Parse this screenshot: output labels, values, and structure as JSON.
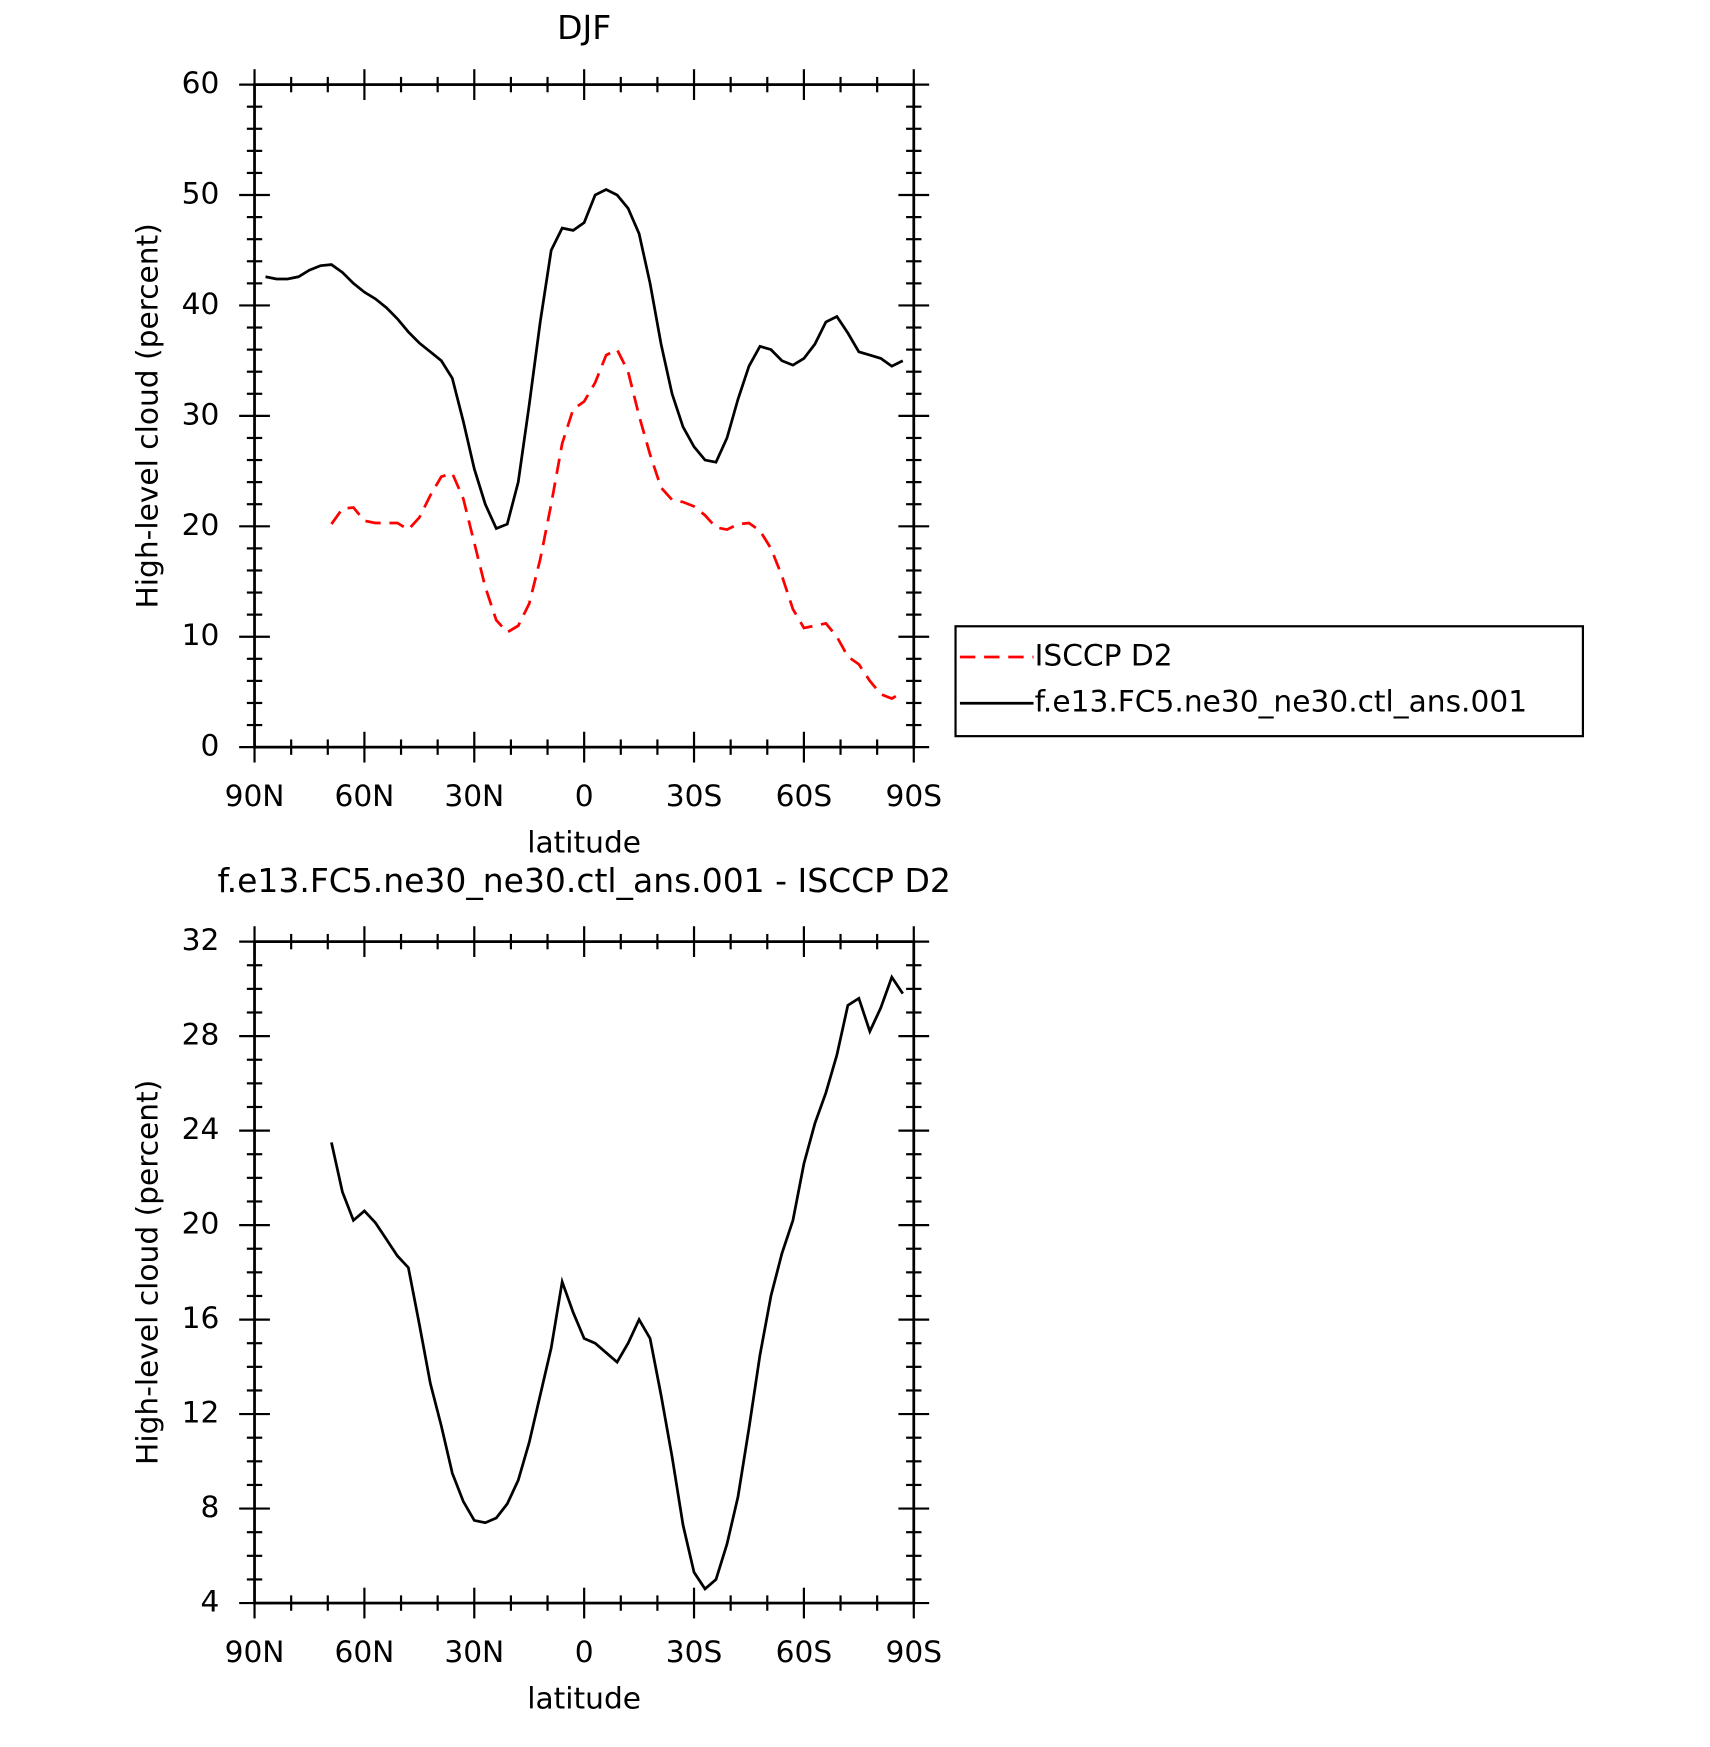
{
  "chart_data": [
    {
      "type": "line",
      "title": "DJF",
      "xlabel": "latitude",
      "ylabel": "High-level cloud (percent)",
      "x": [
        87,
        84,
        81,
        78,
        75,
        72,
        69,
        66,
        63,
        60,
        57,
        54,
        51,
        48,
        45,
        42,
        39,
        36,
        33,
        30,
        27,
        24,
        21,
        18,
        15,
        12,
        9,
        6,
        3,
        0,
        -3,
        -6,
        -9,
        -12,
        -15,
        -18,
        -21,
        -24,
        -27,
        -30,
        -33,
        -36,
        -39,
        -42,
        -45,
        -48,
        -51,
        -54,
        -57,
        -60,
        -63,
        -66,
        -69,
        -72,
        -75,
        -78,
        -81,
        -84,
        -87
      ],
      "series": [
        {
          "name": "ISCCP D2",
          "color": "#ff0000",
          "line_style": "dashed",
          "values": [
            null,
            null,
            null,
            null,
            null,
            null,
            20.2,
            21.6,
            21.7,
            20.5,
            20.3,
            20.3,
            20.3,
            19.7,
            20.8,
            22.8,
            24.5,
            24.8,
            22.5,
            18.5,
            14.5,
            11.5,
            10.4,
            11.0,
            13.0,
            17.0,
            22.0,
            27.5,
            30.6,
            31.3,
            33.0,
            35.5,
            36.0,
            34.0,
            30.0,
            26.5,
            23.5,
            22.4,
            22.2,
            21.8,
            21.0,
            19.9,
            19.7,
            20.2,
            20.3,
            19.6,
            18.0,
            15.5,
            12.5,
            10.8,
            11.0,
            11.2,
            10.0,
            8.2,
            7.5,
            6.0,
            4.8,
            4.4,
            5.0
          ]
        },
        {
          "name": "f.e13.FC5.ne30_ne30.ctl_ans.001",
          "color": "#000000",
          "line_style": "solid",
          "values": [
            42.6,
            42.4,
            42.4,
            42.6,
            43.2,
            43.6,
            43.7,
            43.0,
            42.0,
            41.2,
            40.6,
            39.8,
            38.8,
            37.6,
            36.6,
            35.8,
            35.0,
            33.4,
            29.5,
            25.2,
            22.0,
            19.8,
            20.2,
            24.0,
            31.0,
            38.5,
            45.0,
            47.0,
            46.8,
            47.5,
            50.0,
            50.5,
            50.0,
            48.8,
            46.5,
            42.0,
            36.5,
            32.0,
            29.0,
            27.2,
            26.0,
            25.8,
            28.0,
            31.5,
            34.5,
            36.3,
            36.0,
            35.0,
            34.6,
            35.2,
            36.5,
            38.5,
            39.0,
            37.5,
            35.8,
            35.5,
            35.2,
            34.5,
            35.0
          ]
        }
      ],
      "xlim": [
        90,
        -90
      ],
      "xticks": [
        {
          "value": 90,
          "label": "90N"
        },
        {
          "value": 60,
          "label": "60N"
        },
        {
          "value": 30,
          "label": "30N"
        },
        0,
        {
          "value": -30,
          "label": "30S"
        },
        {
          "value": -60,
          "label": "60S"
        },
        {
          "value": -90,
          "label": "90S"
        }
      ],
      "xminorticks": [
        80,
        70,
        50,
        40,
        20,
        10,
        -10,
        -20,
        -40,
        -50,
        -70,
        -80
      ],
      "ylim": [
        0,
        60
      ],
      "yticks": [
        0,
        10,
        20,
        30,
        40,
        50,
        60
      ],
      "yminorticks": [
        2,
        4,
        6,
        8,
        12,
        14,
        16,
        18,
        22,
        24,
        26,
        28,
        32,
        34,
        36,
        38,
        42,
        44,
        46,
        48,
        52,
        54,
        56,
        58
      ],
      "legend": "right"
    },
    {
      "type": "line",
      "title": "f.e13.FC5.ne30_ne30.ctl_ans.001 - ISCCP D2",
      "xlabel": "latitude",
      "ylabel": "High-level cloud (percent)",
      "x": [
        69,
        66,
        63,
        60,
        57,
        54,
        51,
        48,
        45,
        42,
        39,
        36,
        33,
        30,
        27,
        24,
        21,
        18,
        15,
        12,
        9,
        6,
        3,
        0,
        -3,
        -6,
        -9,
        -12,
        -15,
        -18,
        -21,
        -24,
        -27,
        -30,
        -33,
        -36,
        -39,
        -42,
        -45,
        -48,
        -51,
        -54,
        -57,
        -60,
        -63,
        -66,
        -69,
        -72,
        -75,
        -78,
        -81,
        -84,
        -87
      ],
      "series": [
        {
          "color": "#000000",
          "line_style": "solid",
          "values": [
            23.5,
            21.4,
            20.2,
            20.6,
            20.1,
            19.4,
            18.7,
            18.2,
            15.8,
            13.3,
            11.5,
            9.5,
            8.3,
            7.5,
            7.4,
            7.6,
            8.2,
            9.2,
            10.8,
            12.8,
            14.8,
            17.6,
            16.3,
            15.2,
            15.0,
            14.6,
            14.2,
            15.0,
            16.0,
            15.2,
            12.8,
            10.2,
            7.3,
            5.3,
            4.6,
            5.0,
            6.5,
            8.5,
            11.4,
            14.5,
            17.0,
            18.8,
            20.2,
            22.6,
            24.3,
            25.6,
            27.2,
            29.3,
            29.6,
            28.2,
            29.2,
            30.5,
            29.8
          ]
        }
      ],
      "xlim": [
        90,
        -90
      ],
      "xticks": [
        {
          "value": 90,
          "label": "90N"
        },
        {
          "value": 60,
          "label": "60N"
        },
        {
          "value": 30,
          "label": "30N"
        },
        0,
        {
          "value": -30,
          "label": "30S"
        },
        {
          "value": -60,
          "label": "60S"
        },
        {
          "value": -90,
          "label": "90S"
        }
      ],
      "xminorticks": [
        80,
        70,
        50,
        40,
        20,
        10,
        -10,
        -20,
        -40,
        -50,
        -70,
        -80
      ],
      "ylim": [
        4,
        32
      ],
      "yticks": [
        4,
        8,
        12,
        16,
        20,
        24,
        28,
        32
      ],
      "yminorticks": [
        5,
        6,
        7,
        9,
        10,
        11,
        13,
        14,
        15,
        17,
        18,
        19,
        21,
        22,
        23,
        25,
        26,
        27,
        29,
        30,
        31
      ]
    }
  ]
}
